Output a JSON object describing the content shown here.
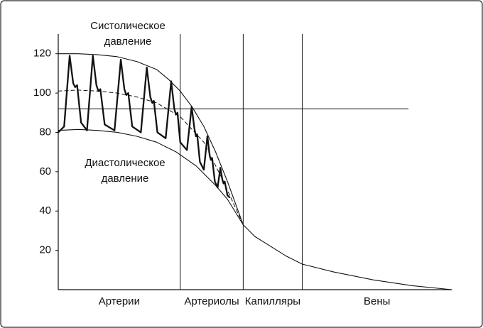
{
  "chart_data": {
    "type": "line",
    "annotations": [
      [
        "Систолическое",
        "давление"
      ],
      [
        "Диастолическое",
        "давление"
      ]
    ],
    "categories": [
      "Артерии",
      "Артериолы",
      "Капилляры",
      "Вены"
    ],
    "dividers": [
      31,
      47,
      62
    ],
    "xlim": [
      0,
      100
    ],
    "ylim": [
      0,
      130
    ],
    "yticks": [
      20,
      40,
      60,
      80,
      100,
      120
    ],
    "reference_line": {
      "y": 92,
      "x": [
        0,
        89
      ]
    },
    "series": [
      {
        "color": "#111111",
        "style": "thin",
        "x": [
          0,
          5,
          10,
          15,
          20,
          25,
          28,
          31,
          34,
          37,
          40,
          43,
          47
        ],
        "values": [
          120,
          120,
          119.5,
          118.5,
          116,
          112,
          107,
          101,
          93,
          83,
          70,
          55,
          33
        ]
      },
      {
        "color": "#111111",
        "style": "thin",
        "x": [
          0,
          5,
          10,
          15,
          20,
          25,
          30,
          35,
          40,
          43,
          47
        ],
        "values": [
          81,
          81.5,
          81,
          80,
          78,
          75,
          70,
          63,
          53,
          46,
          33
        ]
      },
      {
        "color": "#111111",
        "style": "dashed",
        "x": [
          0,
          5,
          10,
          15,
          20,
          25,
          31,
          37,
          42,
          47
        ],
        "values": [
          101,
          101.5,
          101,
          100,
          98,
          95,
          88,
          75,
          55,
          33
        ]
      },
      {
        "color": "#111111",
        "style": "thin",
        "x": [
          47,
          50,
          54,
          58,
          62,
          70,
          80,
          90,
          100
        ],
        "values": [
          33,
          27,
          22,
          17,
          13,
          9,
          5,
          2,
          0
        ]
      },
      {
        "color": "#111111",
        "style": "thick",
        "x": [
          0,
          1.5,
          2.9,
          3.8,
          4.3,
          4.8,
          5.8,
          7.3,
          8.8,
          9.7,
          10.2,
          10.7,
          11.8,
          14.3,
          15.9,
          16.8,
          17.3,
          17.8,
          18.8,
          21,
          22.5,
          23.4,
          23.9,
          24.3,
          25.2,
          27.3,
          28.7,
          29.5,
          29.9,
          30.3,
          31,
          32.7,
          33.9,
          34.6,
          35,
          35.3,
          36,
          37,
          37.9,
          38.5,
          38.8,
          39.1,
          39.8,
          40.5,
          41.2,
          41.7,
          42,
          42.3,
          43,
          43.5
        ],
        "values": [
          80,
          83,
          119,
          105,
          103,
          104,
          85,
          81,
          119,
          104,
          101,
          102,
          84,
          81,
          117,
          102,
          99,
          100,
          83,
          80,
          113,
          98,
          95,
          96,
          80,
          77,
          106,
          92,
          89,
          90,
          75,
          71,
          93,
          82,
          78,
          79,
          65,
          61,
          78,
          68,
          66,
          67,
          55,
          52,
          62,
          56,
          54,
          55,
          48,
          47
        ]
      }
    ]
  }
}
